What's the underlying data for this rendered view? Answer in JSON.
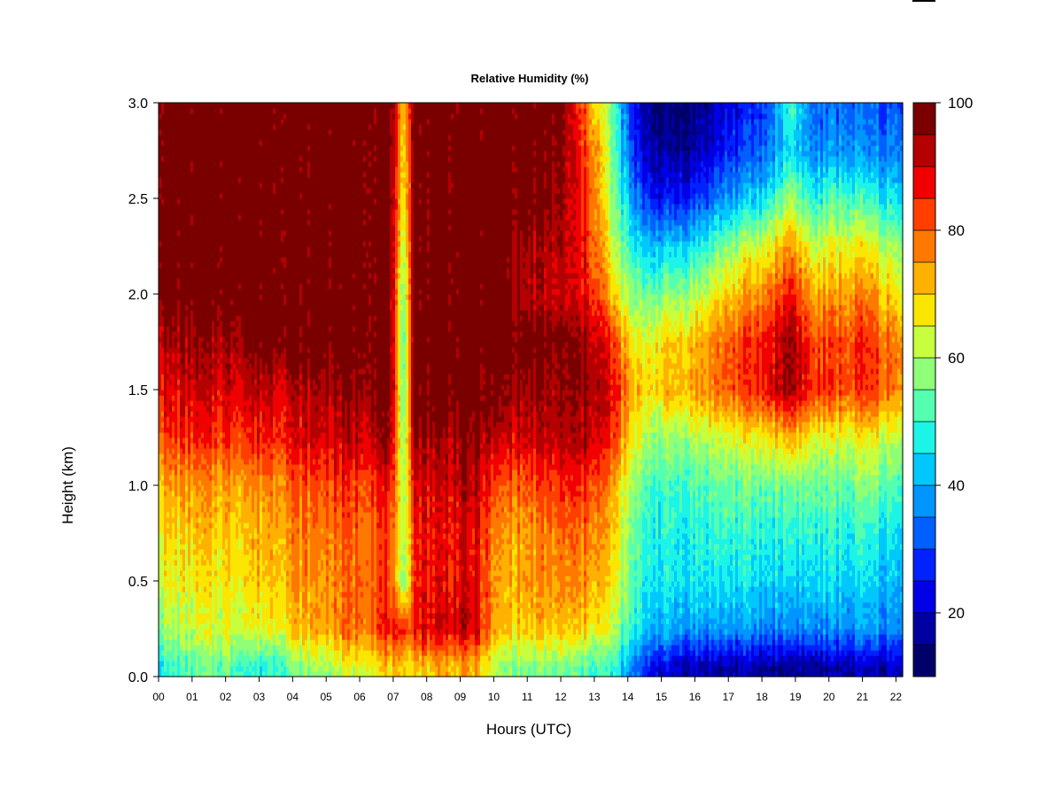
{
  "chart_data": {
    "type": "heatmap",
    "title": "Relative Humidity (%)",
    "xlabel": "Hours (UTC)",
    "ylabel": "Height (km)",
    "x_ticks": [
      "00",
      "01",
      "02",
      "03",
      "04",
      "05",
      "06",
      "07",
      "08",
      "09",
      "10",
      "11",
      "12",
      "13",
      "14",
      "15",
      "16",
      "17",
      "18",
      "19",
      "20",
      "21",
      "22"
    ],
    "y_ticks": [
      "0.0",
      "0.5",
      "1.0",
      "1.5",
      "2.0",
      "2.5",
      "3.0"
    ],
    "xlim": [
      0,
      22.2
    ],
    "ylim": [
      0,
      3.0
    ],
    "colorbar": {
      "ticks": [
        "20",
        "40",
        "60",
        "80",
        "100"
      ],
      "range": [
        10,
        100
      ],
      "step": 5,
      "colors": [
        "#00006a",
        "#0000a2",
        "#0000e6",
        "#0022ff",
        "#0060ff",
        "#0095ff",
        "#00c8ff",
        "#1cf4e8",
        "#55ffb0",
        "#8eff77",
        "#c8ff3d",
        "#fae600",
        "#ffb100",
        "#ff7800",
        "#ff3e00",
        "#f00000",
        "#b40000",
        "#7a0000"
      ]
    },
    "heights_km": [
      0.05,
      0.25,
      0.5,
      0.75,
      1.0,
      1.25,
      1.5,
      1.75,
      2.0,
      2.25,
      2.5,
      2.75,
      3.0
    ],
    "profiles": [
      {
        "hour": 0.0,
        "rh": [
          48,
          58,
          64,
          68,
          72,
          82,
          88,
          92,
          100,
          100,
          100,
          100,
          100
        ]
      },
      {
        "hour": 1.0,
        "rh": [
          52,
          62,
          66,
          70,
          74,
          84,
          90,
          94,
          100,
          100,
          100,
          100,
          100
        ]
      },
      {
        "hour": 2.0,
        "rh": [
          55,
          64,
          67,
          70,
          74,
          84,
          90,
          94,
          100,
          100,
          100,
          100,
          100
        ]
      },
      {
        "hour": 3.0,
        "rh": [
          48,
          64,
          70,
          72,
          76,
          86,
          92,
          100,
          100,
          100,
          100,
          100,
          100
        ]
      },
      {
        "hour": 4.0,
        "rh": [
          55,
          70,
          74,
          76,
          80,
          88,
          92,
          100,
          100,
          100,
          100,
          100,
          100
        ]
      },
      {
        "hour": 5.0,
        "rh": [
          60,
          74,
          76,
          78,
          82,
          90,
          94,
          100,
          100,
          100,
          100,
          100,
          100
        ]
      },
      {
        "hour": 6.0,
        "rh": [
          65,
          80,
          80,
          80,
          84,
          92,
          96,
          100,
          100,
          100,
          100,
          100,
          100
        ]
      },
      {
        "hour": 6.9,
        "rh": [
          70,
          86,
          84,
          84,
          88,
          96,
          100,
          100,
          100,
          100,
          100,
          100,
          100
        ]
      },
      {
        "hour": 7.3,
        "rh": [
          66,
          80,
          50,
          55,
          55,
          52,
          48,
          47,
          50,
          55,
          60,
          62,
          66
        ]
      },
      {
        "hour": 7.6,
        "rh": [
          70,
          88,
          86,
          86,
          90,
          96,
          100,
          100,
          100,
          100,
          100,
          100,
          100
        ]
      },
      {
        "hour": 8.5,
        "rh": [
          72,
          90,
          88,
          88,
          90,
          94,
          100,
          100,
          100,
          100,
          100,
          100,
          100
        ]
      },
      {
        "hour": 9.5,
        "rh": [
          72,
          90,
          88,
          88,
          92,
          96,
          100,
          100,
          100,
          100,
          100,
          100,
          100
        ]
      },
      {
        "hour": 10.1,
        "rh": [
          58,
          70,
          72,
          74,
          80,
          90,
          96,
          100,
          100,
          100,
          100,
          100,
          100
        ]
      },
      {
        "hour": 11.0,
        "rh": [
          56,
          70,
          74,
          74,
          80,
          90,
          94,
          100,
          92,
          94,
          100,
          100,
          100
        ]
      },
      {
        "hour": 12.0,
        "rh": [
          55,
          70,
          76,
          78,
          84,
          92,
          94,
          96,
          90,
          92,
          94,
          96,
          98
        ]
      },
      {
        "hour": 13.0,
        "rh": [
          52,
          68,
          74,
          78,
          84,
          92,
          96,
          94,
          86,
          82,
          80,
          78,
          72
        ]
      },
      {
        "hour": 13.6,
        "rh": [
          48,
          60,
          66,
          68,
          72,
          82,
          86,
          82,
          68,
          60,
          55,
          52,
          50
        ]
      },
      {
        "hour": 14.2,
        "rh": [
          32,
          46,
          50,
          52,
          56,
          64,
          70,
          64,
          55,
          45,
          35,
          25,
          22
        ]
      },
      {
        "hour": 15.0,
        "rh": [
          22,
          40,
          46,
          48,
          50,
          58,
          70,
          68,
          56,
          42,
          24,
          16,
          12
        ]
      },
      {
        "hour": 16.0,
        "rh": [
          18,
          38,
          46,
          48,
          52,
          60,
          74,
          72,
          60,
          46,
          28,
          18,
          14
        ]
      },
      {
        "hour": 17.0,
        "rh": [
          18,
          38,
          46,
          50,
          54,
          64,
          80,
          80,
          70,
          58,
          38,
          26,
          22
        ]
      },
      {
        "hour": 18.0,
        "rh": [
          16,
          36,
          44,
          48,
          54,
          66,
          86,
          86,
          76,
          64,
          44,
          32,
          28
        ]
      },
      {
        "hour": 18.9,
        "rh": [
          16,
          36,
          44,
          50,
          56,
          74,
          96,
          96,
          88,
          76,
          60,
          46,
          52
        ]
      },
      {
        "hour": 19.5,
        "rh": [
          16,
          36,
          44,
          48,
          54,
          64,
          84,
          82,
          72,
          62,
          48,
          36,
          32
        ]
      },
      {
        "hour": 20.5,
        "rh": [
          18,
          36,
          44,
          48,
          54,
          64,
          82,
          82,
          74,
          66,
          52,
          38,
          34
        ]
      },
      {
        "hour": 21.2,
        "rh": [
          18,
          38,
          44,
          48,
          56,
          66,
          84,
          84,
          76,
          66,
          50,
          36,
          32
        ]
      },
      {
        "hour": 22.2,
        "rh": [
          20,
          34,
          40,
          44,
          50,
          60,
          74,
          74,
          64,
          56,
          42,
          34,
          30
        ]
      }
    ]
  }
}
